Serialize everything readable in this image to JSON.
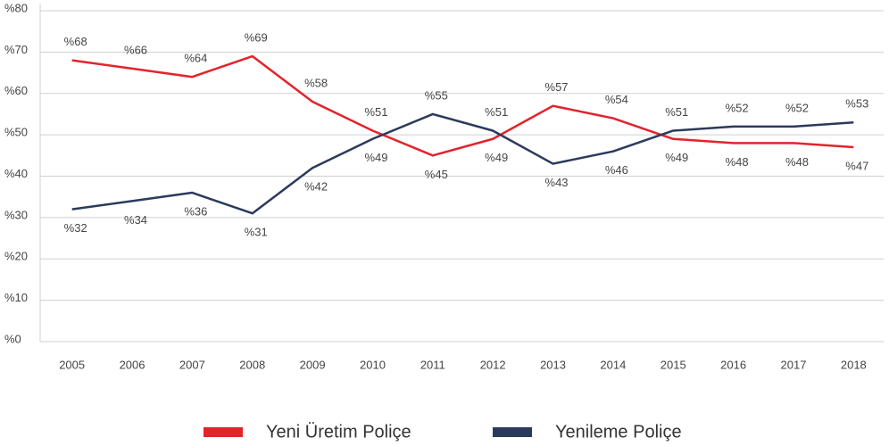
{
  "chart_data": {
    "type": "line",
    "categories": [
      "2005",
      "2006",
      "2007",
      "2008",
      "2009",
      "2010",
      "2011",
      "2012",
      "2013",
      "2014",
      "2015",
      "2016",
      "2017",
      "2018"
    ],
    "series": [
      {
        "name": "Yeni Üretim Poliçe",
        "color": "#e3232c",
        "values": [
          68,
          66,
          64,
          69,
          58,
          51,
          45,
          49,
          57,
          54,
          49,
          48,
          48,
          47
        ],
        "value_labels": [
          "%68",
          "%66",
          "%64",
          "%69",
          "%58",
          "%51",
          "%45",
          "%49",
          "%57",
          "%54",
          "%49",
          "%48",
          "%48",
          "%47"
        ]
      },
      {
        "name": "Yenileme Poliçe",
        "color": "#2b3a5c",
        "values": [
          32,
          34,
          36,
          31,
          42,
          49,
          55,
          51,
          43,
          46,
          51,
          52,
          52,
          53
        ],
        "value_labels": [
          "%32",
          "%34",
          "%36",
          "%31",
          "%42",
          "%49",
          "%55",
          "%51",
          "%43",
          "%46",
          "%51",
          "%52",
          "%52",
          "%53"
        ]
      }
    ],
    "ylim": [
      0,
      80
    ],
    "yticks": [
      {
        "value": 0,
        "label": "%0"
      },
      {
        "value": 10,
        "label": "%10"
      },
      {
        "value": 20,
        "label": "%20"
      },
      {
        "value": 30,
        "label": "%30"
      },
      {
        "value": 40,
        "label": "%40"
      },
      {
        "value": 50,
        "label": "%50"
      },
      {
        "value": 60,
        "label": "%60"
      },
      {
        "value": 70,
        "label": "%70"
      },
      {
        "value": 80,
        "label": "%80"
      }
    ],
    "grid": true
  }
}
